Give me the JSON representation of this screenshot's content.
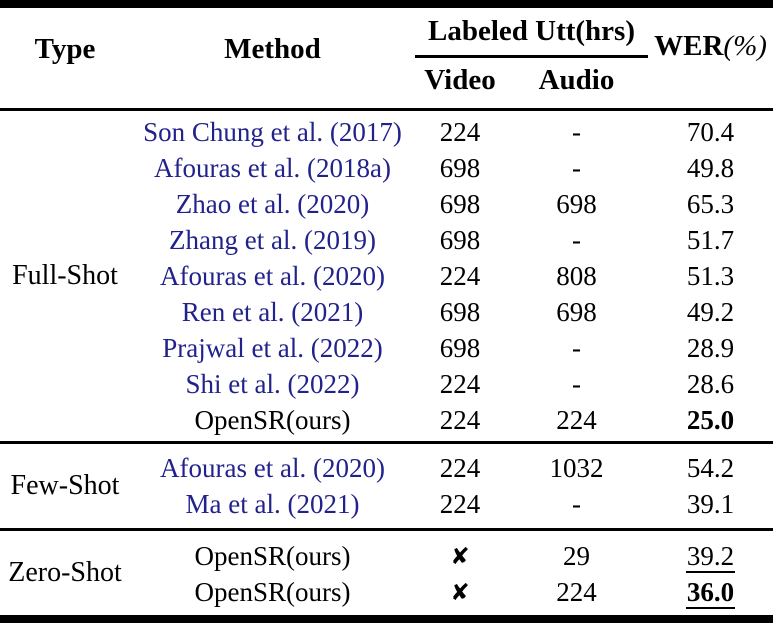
{
  "table": {
    "colors": {
      "citation": "#22228C",
      "rule": "#000000",
      "background": "#FFFFFF"
    },
    "headers": {
      "type": "Type",
      "method": "Method",
      "labeled_utt": "Labeled Utt(hrs)",
      "video": "Video",
      "audio": "Audio",
      "wer_prefix": "WER",
      "wer_suffix": "(%)"
    },
    "cross_icon_glyph": "✘",
    "groups": [
      {
        "type": "Full-Shot",
        "padding": "pad-sm",
        "rows": [
          {
            "method": "Son Chung et al. (2017)",
            "is_citation": true,
            "video": "224",
            "video_is_cross": false,
            "audio": "-",
            "wer": "70.4",
            "wer_bold": false,
            "wer_underline": false
          },
          {
            "method": "Afouras et al. (2018a)",
            "is_citation": true,
            "video": "698",
            "video_is_cross": false,
            "audio": "-",
            "wer": "49.8",
            "wer_bold": false,
            "wer_underline": false
          },
          {
            "method": "Zhao et al. (2020)",
            "is_citation": true,
            "video": "698",
            "video_is_cross": false,
            "audio": "698",
            "wer": "65.3",
            "wer_bold": false,
            "wer_underline": false
          },
          {
            "method": "Zhang et al. (2019)",
            "is_citation": true,
            "video": "698",
            "video_is_cross": false,
            "audio": "-",
            "wer": "51.7",
            "wer_bold": false,
            "wer_underline": false
          },
          {
            "method": "Afouras et al. (2020)",
            "is_citation": true,
            "video": "224",
            "video_is_cross": false,
            "audio": "808",
            "wer": "51.3",
            "wer_bold": false,
            "wer_underline": false
          },
          {
            "method": "Ren et al. (2021)",
            "is_citation": true,
            "video": "698",
            "video_is_cross": false,
            "audio": "698",
            "wer": "49.2",
            "wer_bold": false,
            "wer_underline": false
          },
          {
            "method": "Prajwal et al. (2022)",
            "is_citation": true,
            "video": "698",
            "video_is_cross": false,
            "audio": "-",
            "wer": "28.9",
            "wer_bold": false,
            "wer_underline": false
          },
          {
            "method": "Shi et al. (2022)",
            "is_citation": true,
            "video": "224",
            "video_is_cross": false,
            "audio": "-",
            "wer": "28.6",
            "wer_bold": false,
            "wer_underline": false
          },
          {
            "method": "OpenSR(ours)",
            "is_citation": false,
            "video": "224",
            "video_is_cross": false,
            "audio": "224",
            "wer": "25.0",
            "wer_bold": true,
            "wer_underline": false
          }
        ]
      },
      {
        "type": "Few-Shot",
        "padding": "pad-md",
        "rows": [
          {
            "method": "Afouras et al. (2020)",
            "is_citation": true,
            "video": "224",
            "video_is_cross": false,
            "audio": "1032",
            "wer": "54.2",
            "wer_bold": false,
            "wer_underline": false
          },
          {
            "method": "Ma et al. (2021)",
            "is_citation": true,
            "video": "224",
            "video_is_cross": false,
            "audio": "-",
            "wer": "39.1",
            "wer_bold": false,
            "wer_underline": false
          }
        ]
      },
      {
        "type": "Zero-Shot",
        "padding": "pad-md",
        "rows": [
          {
            "method": "OpenSR(ours)",
            "is_citation": false,
            "video": "✘",
            "video_is_cross": true,
            "audio": "29",
            "wer": "39.2",
            "wer_bold": false,
            "wer_underline": true
          },
          {
            "method": "OpenSR(ours)",
            "is_citation": false,
            "video": "✘",
            "video_is_cross": true,
            "audio": "224",
            "wer": "36.0",
            "wer_bold": true,
            "wer_underline": true
          }
        ]
      }
    ]
  }
}
